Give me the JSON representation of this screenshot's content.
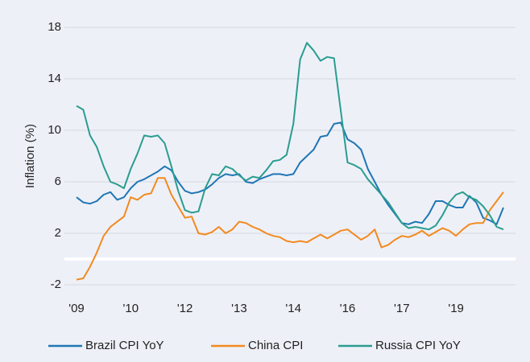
{
  "chart_data": {
    "type": "line",
    "y_label": "Inflation (%)",
    "categories": [
      "'09",
      null,
      null,
      null,
      null,
      null,
      null,
      null,
      "'10",
      null,
      null,
      null,
      null,
      null,
      null,
      null,
      "'12",
      null,
      null,
      null,
      null,
      null,
      null,
      null,
      "'13",
      null,
      null,
      null,
      null,
      null,
      null,
      null,
      "'14",
      null,
      null,
      null,
      null,
      null,
      null,
      null,
      "'16",
      null,
      null,
      null,
      null,
      null,
      null,
      null,
      "'17",
      null,
      null,
      null,
      null,
      null,
      null,
      null,
      "'19",
      null,
      null,
      null,
      null,
      null,
      null,
      null
    ],
    "series": [
      {
        "name": "Brazil CPI YoY",
        "color": "#1f77b4",
        "values": [
          4.8,
          4.4,
          4.3,
          4.5,
          5.0,
          5.2,
          4.6,
          4.8,
          5.5,
          6.0,
          6.2,
          6.5,
          6.8,
          7.2,
          6.9,
          6.0,
          5.3,
          5.1,
          5.2,
          5.4,
          5.8,
          6.3,
          6.6,
          6.5,
          6.6,
          6.0,
          5.9,
          6.2,
          6.4,
          6.6,
          6.6,
          6.5,
          6.6,
          7.5,
          8.0,
          8.5,
          9.5,
          9.6,
          10.5,
          10.6,
          9.3,
          9.0,
          8.5,
          7.0,
          6.0,
          5.0,
          4.2,
          3.5,
          2.8,
          2.7,
          2.9,
          2.8,
          3.5,
          4.5,
          4.5,
          4.2,
          4.0,
          4.0,
          4.9,
          4.4,
          3.2,
          3.0,
          2.7,
          4.0
        ]
      },
      {
        "name": "China CPI",
        "color": "#f28a1e",
        "values": [
          -1.6,
          -1.5,
          -0.6,
          0.5,
          1.8,
          2.5,
          2.9,
          3.3,
          4.8,
          4.6,
          5.0,
          5.1,
          6.3,
          6.3,
          5.0,
          4.1,
          3.2,
          3.3,
          2.0,
          1.9,
          2.1,
          2.5,
          2.0,
          2.3,
          2.9,
          2.8,
          2.5,
          2.3,
          2.0,
          1.8,
          1.7,
          1.4,
          1.3,
          1.4,
          1.3,
          1.6,
          1.9,
          1.6,
          1.9,
          2.2,
          2.3,
          1.9,
          1.5,
          1.8,
          2.3,
          0.9,
          1.1,
          1.5,
          1.8,
          1.7,
          1.9,
          2.2,
          1.8,
          2.1,
          2.4,
          2.2,
          1.8,
          2.3,
          2.7,
          2.8,
          2.8,
          3.8,
          4.5,
          5.2
        ]
      },
      {
        "name": "Russia CPI YoY",
        "color": "#2a9d8f",
        "values": [
          11.9,
          11.6,
          9.6,
          8.7,
          7.2,
          6.0,
          5.8,
          5.5,
          7.0,
          8.2,
          9.6,
          9.5,
          9.6,
          9.0,
          7.2,
          5.3,
          3.8,
          3.6,
          3.7,
          5.5,
          6.6,
          6.5,
          7.2,
          7.0,
          6.5,
          6.1,
          6.4,
          6.3,
          6.9,
          7.6,
          7.7,
          8.1,
          10.5,
          15.5,
          16.8,
          16.2,
          15.4,
          15.7,
          15.6,
          11.5,
          7.5,
          7.3,
          7.0,
          6.2,
          5.6,
          5.0,
          4.4,
          3.6,
          2.8,
          2.4,
          2.5,
          2.4,
          2.3,
          2.6,
          3.4,
          4.4,
          5.0,
          5.2,
          4.8,
          4.6,
          4.1,
          3.4,
          2.5,
          2.3
        ]
      }
    ],
    "ylim": [
      -3,
      19
    ],
    "yticks": [
      -2,
      2,
      6,
      10,
      14,
      18
    ],
    "grid": true,
    "legend": "bottom"
  }
}
